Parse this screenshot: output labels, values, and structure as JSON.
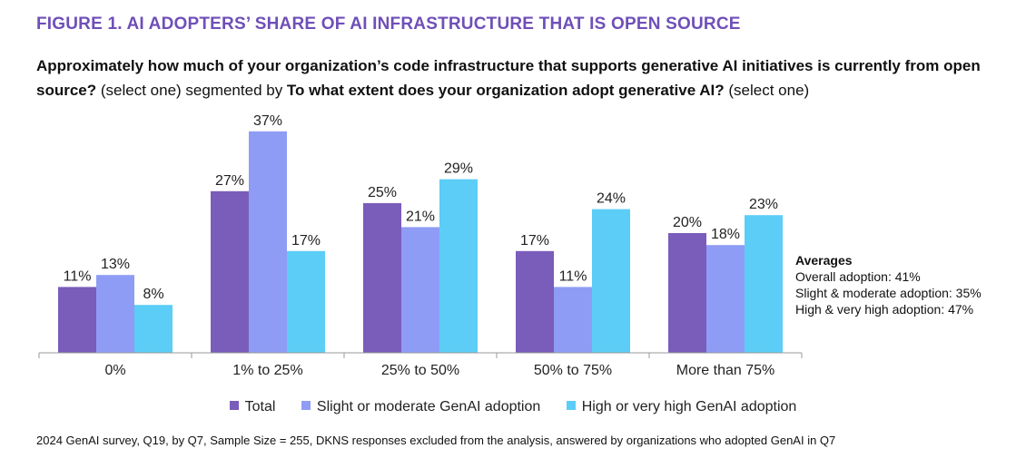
{
  "figure_title": "FIGURE 1. AI ADOPTERS’ SHARE OF AI INFRASTRUCTURE THAT IS OPEN SOURCE",
  "question": {
    "part1_bold": "Approximately how much of your organization’s code infrastructure that supports generative AI initiatives is currently from open source?",
    "part2": " (select one) segmented by ",
    "part3_bold": "To what extent does your organization adopt generative AI?",
    "part4": " (select one)"
  },
  "averages": {
    "title": "Averages",
    "lines": [
      "Overall adoption: 41%",
      "Slight & moderate adoption: 35%",
      "High & very high adoption: 47%"
    ]
  },
  "footnote": "2024 GenAI survey, Q19, by Q7, Sample Size = 255, DKNS responses excluded from the analysis, answered by organizations who adopted GenAI in Q7",
  "chart_data": {
    "type": "bar",
    "title": "FIGURE 1. AI ADOPTERS’ SHARE OF AI INFRASTRUCTURE THAT IS OPEN SOURCE",
    "xlabel": "",
    "ylabel": "",
    "ylim": [
      0,
      40
    ],
    "grid": false,
    "legend_position": "bottom",
    "categories": [
      "0%",
      "1% to 25%",
      "25% to 50%",
      "50% to 75%",
      "More than 75%"
    ],
    "series": [
      {
        "name": "Total",
        "color": "#7a5cba",
        "values": [
          11,
          27,
          25,
          17,
          20
        ]
      },
      {
        "name": "Slight or moderate GenAI adoption",
        "color": "#8f9cf5",
        "values": [
          13,
          37,
          21,
          11,
          18
        ]
      },
      {
        "name": "High or very high GenAI adoption",
        "color": "#5ccdf6",
        "values": [
          8,
          17,
          29,
          24,
          23
        ]
      }
    ],
    "value_suffix": "%"
  }
}
